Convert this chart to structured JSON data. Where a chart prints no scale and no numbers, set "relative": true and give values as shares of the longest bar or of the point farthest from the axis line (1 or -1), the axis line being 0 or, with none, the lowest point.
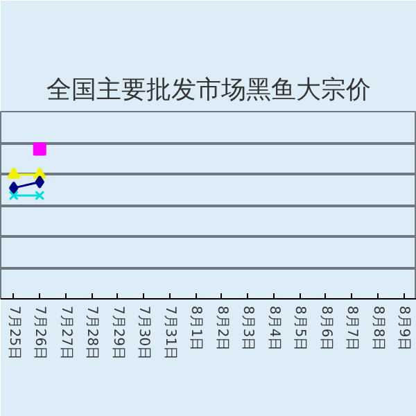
{
  "chart_data": {
    "type": "line",
    "title": "全国主要批发市场黑鱼大宗价",
    "relative": true,
    "grid": "y",
    "categories": [
      "7月25日",
      "7月26日",
      "7月27日",
      "7月28日",
      "7月29日",
      "7月30日",
      "7月31日",
      "8月1日",
      "8月2日",
      "8月3日",
      "8月4日",
      "8月5日",
      "8月6日",
      "8月7日",
      "8月8日",
      "8月9日"
    ],
    "series": [
      {
        "color": "#ff00ff",
        "marker": "square",
        "values": [
          null,
          1,
          null,
          null,
          null,
          null,
          null,
          null,
          null,
          null,
          null,
          null,
          null,
          null,
          null,
          null
        ]
      },
      {
        "color": "#f0f000",
        "marker": "triangle",
        "values": [
          0.83,
          0.83,
          null,
          null,
          null,
          null,
          null,
          null,
          null,
          null,
          null,
          null,
          null,
          null,
          null,
          null
        ]
      },
      {
        "color": "#000080",
        "marker": "diamond",
        "values": [
          0.74,
          0.78,
          null,
          null,
          null,
          null,
          null,
          null,
          null,
          null,
          null,
          null,
          null,
          null,
          null,
          null
        ]
      },
      {
        "color": "#00dddd",
        "marker": "cross",
        "values": [
          0.69,
          0.69,
          null,
          null,
          null,
          null,
          null,
          null,
          null,
          null,
          null,
          null,
          null,
          null,
          null,
          null
        ]
      }
    ]
  }
}
